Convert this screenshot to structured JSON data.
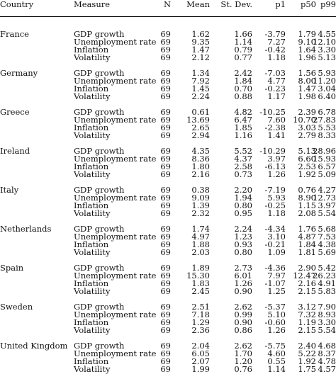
{
  "table": {
    "headers": [
      "Country",
      "Measure",
      "N",
      "Mean",
      "St. Dev.",
      "p1",
      "p50",
      "p99"
    ],
    "groups": [
      {
        "country": "France",
        "rows": [
          [
            "GDP growth",
            "69",
            "1.62",
            "1.66",
            "-3.79",
            "1.79",
            "4.55"
          ],
          [
            "Unemployment rate",
            "69",
            "9.35",
            "1.14",
            "7.27",
            "9.10",
            "12.10"
          ],
          [
            "Inflation",
            "69",
            "1.47",
            "0.79",
            "-0.42",
            "1.64",
            "3.30"
          ],
          [
            "Volatility",
            "69",
            "2.12",
            "0.77",
            "1.18",
            "1.96",
            "5.13"
          ]
        ]
      },
      {
        "country": "Germany",
        "rows": [
          [
            "GDP growth",
            "69",
            "1.34",
            "2.42",
            "-7.03",
            "1.56",
            "5.93"
          ],
          [
            "Unemployment rate",
            "69",
            "7.92",
            "1.84",
            "4.77",
            "8.00",
            "11.20"
          ],
          [
            "Inflation",
            "69",
            "1.45",
            "0.70",
            "-0.23",
            "1.47",
            "3.04"
          ],
          [
            "Volatility",
            "69",
            "2.24",
            "0.88",
            "1.17",
            "1.98",
            "6.40"
          ]
        ]
      },
      {
        "country": "Greece",
        "rows": [
          [
            "GDP growth",
            "69",
            "0.61",
            "4.82",
            "-10.25",
            "2.39",
            "6.78"
          ],
          [
            "Unemployment rate",
            "69",
            "13.69",
            "6.47",
            "7.60",
            "10.70",
            "27.83"
          ],
          [
            "Inflation",
            "69",
            "2.65",
            "1.85",
            "-2.38",
            "3.03",
            "5.53"
          ],
          [
            "Volatility",
            "69",
            "2.94",
            "1.16",
            "1.41",
            "2.79",
            "8.33"
          ]
        ]
      },
      {
        "country": "Ireland",
        "rows": [
          [
            "GDP growth",
            "69",
            "4.35",
            "5.52",
            "-10.29",
            "5.13",
            "28.96"
          ],
          [
            "Unemployment rate",
            "69",
            "8.36",
            "4.37",
            "3.97",
            "6.60",
            "15.93"
          ],
          [
            "Inflation",
            "69",
            "1.80",
            "2.58",
            "-6.13",
            "2.53",
            "6.57"
          ],
          [
            "Volatility",
            "69",
            "2.16",
            "0.73",
            "1.26",
            "1.92",
            "5.09"
          ]
        ]
      },
      {
        "country": "Italy",
        "rows": [
          [
            "GDP growth",
            "69",
            "0.38",
            "2.20",
            "-7.19",
            "0.76",
            "4.27"
          ],
          [
            "Unemployment rate",
            "69",
            "9.09",
            "1.94",
            "5.93",
            "8.90",
            "12.73"
          ],
          [
            "Inflation",
            "69",
            "1.39",
            "0.80",
            "-0.25",
            "1.15",
            "3.97"
          ],
          [
            "Volatility",
            "69",
            "2.32",
            "0.95",
            "1.18",
            "2.08",
            "5.54"
          ]
        ]
      },
      {
        "country": "Netherlands",
        "rows": [
          [
            "GDP growth",
            "69",
            "1.74",
            "2.24",
            "-4.34",
            "1.76",
            "5.68"
          ],
          [
            "Unemployment rate",
            "69",
            "4.97",
            "1.23",
            "3.10",
            "4.87",
            "7.53"
          ],
          [
            "Inflation",
            "69",
            "1.88",
            "0.93",
            "-0.21",
            "1.84",
            "4.38"
          ],
          [
            "Volatility",
            "69",
            "2.03",
            "0.80",
            "1.09",
            "1.81",
            "5.69"
          ]
        ]
      },
      {
        "country": "Spain",
        "rows": [
          [
            "GDP growth",
            "69",
            "1.89",
            "2.73",
            "-4.36",
            "2.90",
            "5.42"
          ],
          [
            "Unemployment rate",
            "69",
            "15.30",
            "6.01",
            "7.97",
            "12.47",
            "26.23"
          ],
          [
            "Inflation",
            "69",
            "1.83",
            "1.26",
            "-1.07",
            "2.16",
            "4.91"
          ],
          [
            "Volatility",
            "69",
            "2.45",
            "0.90",
            "1.25",
            "2.15",
            "5.83"
          ]
        ]
      },
      {
        "country": "Sweden",
        "rows": [
          [
            "GDP growth",
            "69",
            "2.51",
            "2.62",
            "-5.37",
            "3.12",
            "7.90"
          ],
          [
            "Unemployment rate",
            "69",
            "7.18",
            "0.99",
            "5.10",
            "7.32",
            "8.93"
          ],
          [
            "Inflation",
            "69",
            "1.29",
            "0.90",
            "-0.60",
            "1.19",
            "3.30"
          ],
          [
            "Volatility",
            "69",
            "2.36",
            "0.86",
            "1.26",
            "2.15",
            "5.54"
          ]
        ]
      },
      {
        "country": "United Kingdom",
        "rows": [
          [
            "GDP growth",
            "69",
            "2.04",
            "2.62",
            "-5.75",
            "2.40",
            "4.68"
          ],
          [
            "Unemployment rate",
            "69",
            "6.05",
            "1.70",
            "4.60",
            "5.22",
            "8.37"
          ],
          [
            "Inflation",
            "69",
            "2.07",
            "1.20",
            "0.55",
            "1.92",
            "4.78"
          ],
          [
            "Volatility",
            "69",
            "1.99",
            "0.76",
            "1.14",
            "1.75",
            "4.57"
          ]
        ]
      }
    ]
  }
}
